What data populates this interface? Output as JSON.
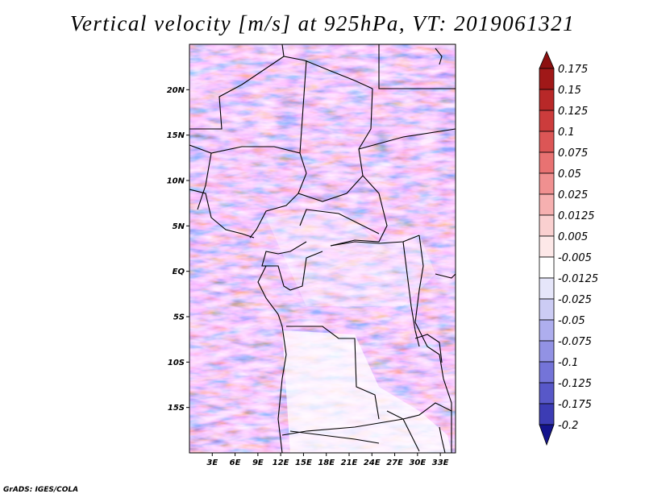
{
  "title": "Vertical velocity [m/s] at 925hPa, VT: 2019061321",
  "credit": "GrADS: IGES/COLA",
  "map": {
    "lon_range": [
      0,
      35
    ],
    "lat_range": [
      -20,
      25
    ],
    "lat_ticks": [
      {
        "value": 20,
        "label": "20N"
      },
      {
        "value": 15,
        "label": "15N"
      },
      {
        "value": 10,
        "label": "10N"
      },
      {
        "value": 5,
        "label": "5N"
      },
      {
        "value": 0,
        "label": "EQ"
      },
      {
        "value": -5,
        "label": "5S"
      },
      {
        "value": -10,
        "label": "10S"
      },
      {
        "value": -15,
        "label": "15S"
      }
    ],
    "lon_ticks": [
      {
        "value": 3,
        "label": "3E"
      },
      {
        "value": 6,
        "label": "6E"
      },
      {
        "value": 9,
        "label": "9E"
      },
      {
        "value": 12,
        "label": "12E"
      },
      {
        "value": 15,
        "label": "15E"
      },
      {
        "value": 18,
        "label": "18E"
      },
      {
        "value": 21,
        "label": "21E"
      },
      {
        "value": 24,
        "label": "24E"
      },
      {
        "value": 27,
        "label": "27E"
      },
      {
        "value": 30,
        "label": "30E"
      },
      {
        "value": 33,
        "label": "33E"
      }
    ]
  },
  "colorbar": {
    "levels": [
      {
        "label": "0.175",
        "color": "#a01818"
      },
      {
        "label": "0.15",
        "color": "#b82828"
      },
      {
        "label": "0.125",
        "color": "#cc3c3c"
      },
      {
        "label": "0.1",
        "color": "#dc5656"
      },
      {
        "label": "0.075",
        "color": "#e87272"
      },
      {
        "label": "0.05",
        "color": "#f09090"
      },
      {
        "label": "0.025",
        "color": "#f6b0b0"
      },
      {
        "label": "0.0125",
        "color": "#fad0d0"
      },
      {
        "label": "0.005",
        "color": "#fde8e8"
      },
      {
        "label": "-0.005",
        "color": "#ffffff"
      },
      {
        "label": "-0.0125",
        "color": "#e6e6fa"
      },
      {
        "label": "-0.025",
        "color": "#ccccf4"
      },
      {
        "label": "-0.05",
        "color": "#aeaeee"
      },
      {
        "label": "-0.075",
        "color": "#9292e4"
      },
      {
        "label": "-0.1",
        "color": "#7474d8"
      },
      {
        "label": "-0.125",
        "color": "#5858c8"
      },
      {
        "label": "-0.175",
        "color": "#3c3cb4"
      },
      {
        "label": "-0.2",
        "color": "#2222a0"
      }
    ],
    "top_color": "#8c1010",
    "bottom_color": "#14148c"
  }
}
